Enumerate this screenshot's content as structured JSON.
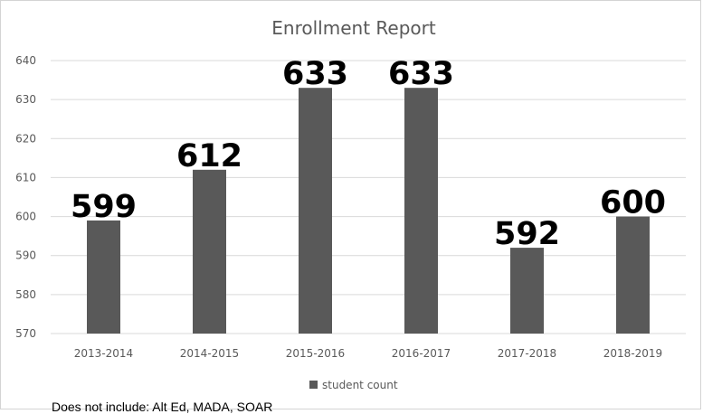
{
  "chart_data": {
    "type": "bar",
    "title": "Enrollment Report",
    "categories": [
      "2013-2014",
      "2014-2015",
      "2015-2016",
      "2016-2017",
      "2017-2018",
      "2018-2019"
    ],
    "series": [
      {
        "name": "student count",
        "values": [
          599,
          612,
          633,
          633,
          592,
          600
        ]
      }
    ],
    "ylim": [
      570,
      640
    ],
    "yticks": [
      570,
      580,
      590,
      600,
      610,
      620,
      630,
      640
    ],
    "grid": true,
    "legend_position": "bottom",
    "bar_color": "#595959",
    "gridline_color": "#d9d9d9"
  },
  "footnote": "Does not include: Alt Ed, MADA, SOAR"
}
